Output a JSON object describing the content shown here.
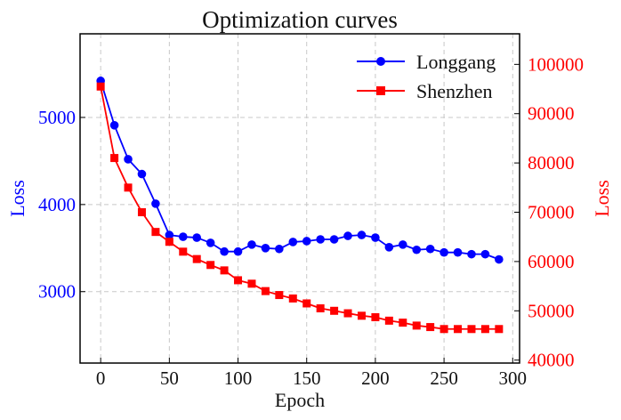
{
  "chart_data": {
    "type": "line",
    "title": "Optimization curves",
    "xlabel": "Epoch",
    "ylabel_left": "Loss",
    "ylabel_right": "Loss",
    "xlim": [
      -15,
      305
    ],
    "ylim_left": [
      2180,
      5960
    ],
    "ylim_right": [
      39400,
      106200
    ],
    "x_ticks": [
      0,
      50,
      100,
      150,
      200,
      250,
      300
    ],
    "y_ticks_left": [
      3000,
      4000,
      5000
    ],
    "y_ticks_right": [
      40000,
      50000,
      60000,
      70000,
      80000,
      90000,
      100000
    ],
    "grid": true,
    "legend_position": "top-right",
    "colors": {
      "left_axis": "#0000ff",
      "right_axis": "#ff0000"
    },
    "x": [
      0,
      10,
      20,
      30,
      40,
      50,
      60,
      70,
      80,
      90,
      100,
      110,
      120,
      130,
      140,
      150,
      160,
      170,
      180,
      190,
      200,
      210,
      220,
      230,
      240,
      250,
      260,
      270,
      280,
      290
    ],
    "series": [
      {
        "name": "Longgang",
        "axis": "left",
        "color": "#0000ff",
        "marker": "circle",
        "values": [
          5420,
          4910,
          4520,
          4350,
          4010,
          3650,
          3630,
          3620,
          3560,
          3460,
          3460,
          3540,
          3500,
          3490,
          3570,
          3580,
          3600,
          3600,
          3640,
          3650,
          3620,
          3510,
          3540,
          3480,
          3490,
          3450,
          3450,
          3430,
          3430,
          3370
        ]
      },
      {
        "name": "Shenzhen",
        "axis": "right",
        "color": "#ff0000",
        "marker": "square",
        "values": [
          95500,
          81000,
          75000,
          70000,
          66000,
          64000,
          62000,
          60500,
          59300,
          58200,
          56200,
          55500,
          54000,
          53200,
          52500,
          51500,
          50500,
          50000,
          49500,
          49000,
          48700,
          48000,
          47600,
          47000,
          46700,
          46300,
          46300,
          46300,
          46300,
          46300
        ]
      }
    ]
  }
}
